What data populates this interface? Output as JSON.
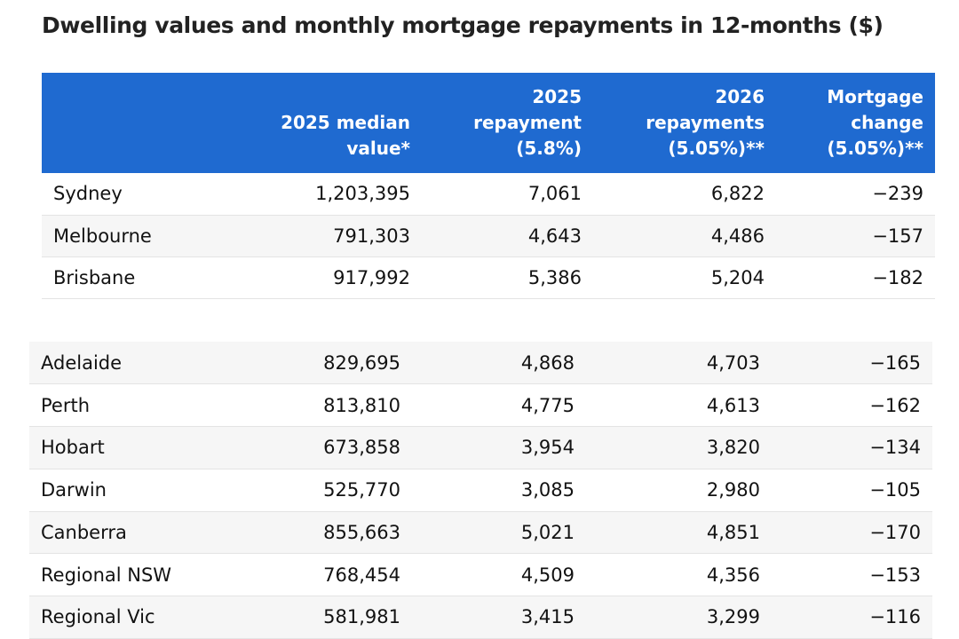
{
  "title": "Dwelling values and monthly mortgage repayments in 12-months ($)",
  "chart_data": {
    "type": "table",
    "title": "Dwelling values and monthly mortgage repayments in 12-months ($)",
    "columns": [
      "",
      "2025 median value*",
      "2025 repayment (5.8%)",
      "2026 repayments (5.05%)**",
      "Mortgage change (5.05%)**"
    ],
    "header_lines": [
      [
        ""
      ],
      [
        "2025 median",
        "value*"
      ],
      [
        "2025",
        "repayment",
        "(5.8%)"
      ],
      [
        "2026",
        "repayments",
        "(5.05%)**"
      ],
      [
        "Mortgage",
        "change",
        "(5.05%)**"
      ]
    ],
    "rows_top": [
      [
        "Sydney",
        "1,203,395",
        "7,061",
        "6,822",
        "−239"
      ],
      [
        "Melbourne",
        "791,303",
        "4,643",
        "4,486",
        "−157"
      ],
      [
        "Brisbane",
        "917,992",
        "5,386",
        "5,204",
        "−182"
      ]
    ],
    "rows_bottom": [
      [
        "Adelaide",
        "829,695",
        "4,868",
        "4,703",
        "−165"
      ],
      [
        "Perth",
        "813,810",
        "4,775",
        "4,613",
        "−162"
      ],
      [
        "Hobart",
        "673,858",
        "3,954",
        "3,820",
        "−134"
      ],
      [
        "Darwin",
        "525,770",
        "3,085",
        "2,980",
        "−105"
      ],
      [
        "Canberra",
        "855,663",
        "5,021",
        "4,851",
        "−170"
      ],
      [
        "Regional NSW",
        "768,454",
        "4,509",
        "4,356",
        "−153"
      ],
      [
        "Regional Vic",
        "581,981",
        "3,415",
        "3,299",
        "−116"
      ]
    ]
  },
  "colors": {
    "header_background": "#1f6ad0",
    "header_text": "#ffffff",
    "stripe": "#f6f6f6"
  }
}
